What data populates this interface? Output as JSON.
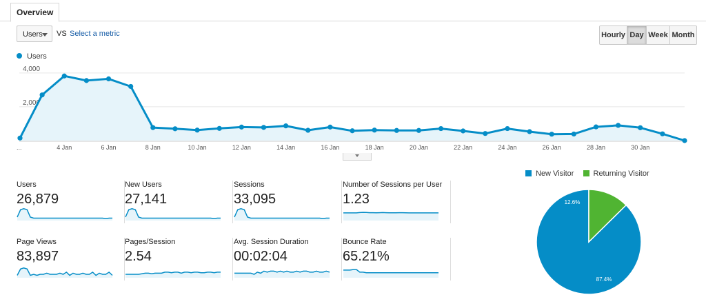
{
  "tabs": [
    {
      "label": "Overview"
    }
  ],
  "toolbar": {
    "metric": "Users",
    "vs_label": "VS",
    "select_metric_label": "Select a metric",
    "periods": [
      {
        "label": "Hourly",
        "active": false
      },
      {
        "label": "Day",
        "active": true
      },
      {
        "label": "Week",
        "active": false
      },
      {
        "label": "Month",
        "active": false
      }
    ]
  },
  "colors": {
    "series": "#058dc7",
    "area": "#e6f4fa",
    "new_visitor": "#058dc7",
    "returning_visitor": "#50b432",
    "grid": "#e8e8e8"
  },
  "chart_data": [
    {
      "type": "area",
      "legend": [
        "Users"
      ],
      "y_ticks": [
        "2,000",
        "4,000"
      ],
      "ylim": [
        0,
        4400
      ],
      "x_start_label": "...",
      "x_tick_labels": [
        "4 Jan",
        "6 Jan",
        "8 Jan",
        "10 Jan",
        "12 Jan",
        "14 Jan",
        "16 Jan",
        "18 Jan",
        "20 Jan",
        "22 Jan",
        "24 Jan",
        "26 Jan",
        "28 Jan",
        "30 Jan"
      ],
      "series": [
        {
          "name": "Users",
          "x": [
            "1 Jan",
            "2 Jan",
            "3 Jan",
            "4 Jan",
            "5 Jan",
            "6 Jan",
            "7 Jan",
            "8 Jan",
            "9 Jan",
            "10 Jan",
            "11 Jan",
            "12 Jan",
            "13 Jan",
            "14 Jan",
            "15 Jan",
            "16 Jan",
            "17 Jan",
            "18 Jan",
            "19 Jan",
            "20 Jan",
            "21 Jan",
            "22 Jan",
            "23 Jan",
            "24 Jan",
            "25 Jan",
            "26 Jan",
            "27 Jan",
            "28 Jan",
            "29 Jan",
            "30 Jan",
            "31 Jan"
          ],
          "values": [
            150,
            2700,
            3820,
            3550,
            3650,
            3200,
            770,
            700,
            620,
            720,
            800,
            780,
            870,
            610,
            800,
            580,
            620,
            600,
            600,
            710,
            570,
            420,
            710,
            530,
            380,
            390,
            810,
            900,
            760,
            400,
            0
          ]
        }
      ]
    },
    {
      "type": "pie",
      "legend": [
        "New Visitor",
        "Returning Visitor"
      ],
      "slices": [
        {
          "name": "New Visitor",
          "value": 87.4,
          "label": "87.4%"
        },
        {
          "name": "Returning Visitor",
          "value": 12.6,
          "label": "12.6%"
        }
      ]
    }
  ],
  "metrics": [
    {
      "label": "Users",
      "value": "26,879",
      "spark": [
        2,
        9,
        10,
        9,
        2,
        1,
        1,
        1,
        1,
        1,
        1,
        1,
        1,
        1,
        1,
        1,
        1,
        1,
        1,
        1,
        1,
        1,
        1,
        1,
        1,
        1,
        1,
        0.5,
        1,
        1
      ]
    },
    {
      "label": "New Users",
      "value": "27,141",
      "spark": [
        2,
        9,
        10,
        9,
        2,
        1,
        1,
        1,
        1,
        1,
        1,
        1,
        1,
        1,
        1,
        1,
        1,
        1,
        1,
        1,
        1,
        1,
        1,
        1,
        1,
        1,
        1,
        0.5,
        1,
        1
      ]
    },
    {
      "label": "Sessions",
      "value": "33,095",
      "spark": [
        2,
        9,
        10,
        9,
        2,
        1,
        1,
        1,
        1,
        1,
        1,
        1,
        1,
        1,
        1,
        1,
        1,
        1,
        1,
        1,
        1,
        1,
        1,
        1,
        1,
        1,
        1,
        0.5,
        1,
        1
      ]
    },
    {
      "label": "Number of Sessions per User",
      "value": "1.23",
      "spark": [
        6,
        6,
        6,
        6,
        6,
        6.3,
        6.5,
        6.4,
        6.2,
        6.2,
        6.1,
        6.2,
        6.3,
        6.2,
        6.1,
        6.1,
        6.1,
        6.2,
        6.2,
        6.1,
        6,
        6,
        6,
        6,
        6,
        6,
        6,
        6,
        6,
        6
      ]
    },
    {
      "label": "Page Views",
      "value": "83,897",
      "spark": [
        1,
        7,
        8,
        7,
        1,
        2,
        1,
        2,
        2,
        3,
        2,
        2,
        2,
        3,
        2,
        4,
        1,
        3,
        2,
        2,
        3,
        2,
        2,
        4,
        1,
        3,
        2,
        2,
        4,
        1
      ]
    },
    {
      "label": "Pages/Session",
      "value": "2.54",
      "spark": [
        2,
        2,
        2,
        2,
        2,
        2.5,
        3,
        3,
        2.5,
        3,
        3,
        3,
        4,
        4,
        3.5,
        4,
        4,
        3,
        4,
        4,
        3.5,
        4,
        4,
        3.5,
        3.5,
        4,
        4,
        3.5,
        4,
        4
      ]
    },
    {
      "label": "Avg. Session Duration",
      "value": "00:02:04",
      "spark": [
        3,
        3,
        3,
        3,
        3,
        3,
        2,
        4,
        3,
        5,
        4,
        5,
        5,
        4,
        5,
        4,
        5,
        4,
        4,
        5,
        4,
        5,
        5,
        4,
        4,
        5,
        4,
        4,
        5,
        4
      ]
    },
    {
      "label": "Bounce Rate",
      "value": "65.21%",
      "spark": [
        6,
        6,
        6,
        6.5,
        6.5,
        4,
        4,
        3.5,
        3.5,
        3.5,
        3.5,
        3.5,
        3.5,
        3.5,
        3.5,
        3.5,
        3.5,
        3.5,
        3.5,
        3.5,
        3.5,
        3.5,
        3.5,
        3.5,
        3.5,
        3.5,
        3.5,
        3.5,
        3.5,
        3.5
      ]
    }
  ]
}
